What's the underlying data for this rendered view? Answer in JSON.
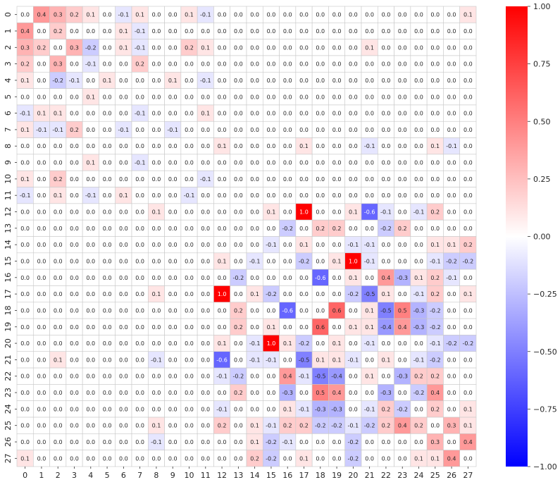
{
  "chart_data": {
    "type": "heatmap",
    "title": "",
    "xlabel": "",
    "ylabel": "",
    "x_labels": [
      "0",
      "1",
      "2",
      "3",
      "4",
      "5",
      "6",
      "7",
      "8",
      "9",
      "10",
      "11",
      "12",
      "13",
      "14",
      "15",
      "16",
      "17",
      "18",
      "19",
      "20",
      "21",
      "22",
      "23",
      "24",
      "25",
      "26",
      "27"
    ],
    "y_labels": [
      "0",
      "1",
      "2",
      "3",
      "4",
      "5",
      "6",
      "7",
      "8",
      "9",
      "10",
      "11",
      "12",
      "13",
      "14",
      "15",
      "16",
      "17",
      "18",
      "19",
      "20",
      "21",
      "22",
      "23",
      "24",
      "25",
      "26",
      "27"
    ],
    "value_range": [
      -1.0,
      1.0
    ],
    "colormap": "bwr",
    "colormap_colors": {
      "min": "#0000ff",
      "mid": "#ffffff",
      "max": "#ff0000"
    },
    "colorbar_ticks": [
      1.0,
      0.75,
      0.5,
      0.25,
      0.0,
      -0.25,
      -0.5,
      -0.75,
      -1.0
    ],
    "colorbar_tick_labels": [
      "1.00",
      "0.75",
      "0.50",
      "0.25",
      "0.00",
      "−0.25",
      "−0.50",
      "−0.75",
      "−1.00"
    ],
    "grid": true,
    "annotations": true,
    "annotation_format": "one-decimal",
    "values": [
      [
        0.0,
        0.4,
        0.3,
        0.2,
        0.1,
        0.0,
        -0.1,
        0.1,
        0.0,
        0.0,
        0.1,
        -0.1,
        0.0,
        0.0,
        0.0,
        -0.0,
        0.0,
        0.0,
        -0.0,
        -0.0,
        0.0,
        0.0,
        0.0,
        0.0,
        -0.0,
        0.0,
        0.0,
        0.1
      ],
      [
        0.4,
        0.0,
        0.2,
        0.0,
        0.0,
        0.0,
        0.1,
        -0.1,
        0.0,
        0.0,
        -0.0,
        -0.0,
        -0.0,
        -0.0,
        0.0,
        0.0,
        0.0,
        -0.0,
        0.0,
        0.0,
        -0.0,
        0.0,
        0.0,
        0.0,
        -0.0,
        0.0,
        0.0,
        0.0
      ],
      [
        0.3,
        0.2,
        0.0,
        0.3,
        -0.2,
        0.0,
        0.1,
        -0.1,
        0.0,
        0.0,
        0.2,
        0.1,
        0.0,
        0.0,
        0.0,
        0.0,
        0.0,
        0.0,
        -0.0,
        -0.0,
        0.0,
        0.1,
        0.0,
        -0.0,
        -0.0,
        0.0,
        0.0,
        -0.0
      ],
      [
        0.2,
        0.0,
        0.3,
        0.0,
        -0.1,
        0.0,
        0.0,
        0.2,
        0.0,
        0.0,
        0.0,
        -0.0,
        0.0,
        0.0,
        -0.0,
        -0.0,
        -0.0,
        -0.0,
        -0.0,
        -0.0,
        -0.0,
        -0.0,
        -0.0,
        -0.0,
        -0.0,
        -0.0,
        -0.0,
        -0.0
      ],
      [
        0.1,
        0.0,
        -0.2,
        -0.1,
        0.0,
        0.1,
        0.0,
        0.0,
        -0.0,
        0.1,
        0.0,
        -0.1,
        -0.0,
        0.0,
        -0.0,
        -0.0,
        -0.0,
        -0.0,
        -0.0,
        -0.0,
        -0.0,
        -0.0,
        -0.0,
        -0.0,
        -0.0,
        0.0,
        0.0,
        0.0
      ],
      [
        0.0,
        0.0,
        0.0,
        0.0,
        0.1,
        0.0,
        0.0,
        0.0,
        -0.0,
        -0.0,
        -0.0,
        0.0,
        -0.0,
        -0.0,
        -0.0,
        -0.0,
        -0.0,
        -0.0,
        -0.0,
        -0.0,
        -0.0,
        -0.0,
        -0.0,
        -0.0,
        0.0,
        0.0,
        0.0,
        0.0
      ],
      [
        -0.1,
        0.1,
        0.1,
        0.0,
        0.0,
        0.0,
        0.0,
        -0.1,
        0.0,
        -0.0,
        -0.0,
        0.1,
        -0.0,
        -0.0,
        0.0,
        0.0,
        0.0,
        -0.0,
        0.0,
        0.0,
        0.0,
        -0.0,
        0.0,
        -0.0,
        -0.0,
        -0.0,
        -0.0,
        -0.0
      ],
      [
        0.1,
        -0.1,
        -0.1,
        0.2,
        0.0,
        0.0,
        -0.1,
        0.0,
        -0.0,
        -0.1,
        -0.0,
        -0.0,
        -0.0,
        0.0,
        0.0,
        0.0,
        0.0,
        -0.0,
        -0.0,
        -0.0,
        0.0,
        -0.0,
        0.0,
        -0.0,
        0.0,
        -0.0,
        0.0,
        0.0
      ],
      [
        0.0,
        0.0,
        0.0,
        0.0,
        -0.0,
        -0.0,
        0.0,
        -0.0,
        0.0,
        -0.0,
        -0.0,
        0.0,
        0.1,
        0.0,
        -0.0,
        0.0,
        0.0,
        0.1,
        -0.0,
        -0.0,
        0.0,
        -0.1,
        -0.0,
        0.0,
        -0.0,
        0.1,
        -0.1,
        0.0
      ],
      [
        0.0,
        0.0,
        0.0,
        0.0,
        0.1,
        -0.0,
        0.0,
        -0.1,
        -0.0,
        0.0,
        -0.0,
        -0.0,
        0.0,
        -0.0,
        -0.0,
        0.0,
        0.0,
        -0.0,
        -0.0,
        -0.0,
        -0.0,
        -0.0,
        -0.0,
        -0.0,
        0.0,
        -0.0,
        -0.0,
        -0.0
      ],
      [
        0.1,
        -0.0,
        0.2,
        0.0,
        0.0,
        0.0,
        0.0,
        0.0,
        -0.0,
        -0.0,
        0.0,
        -0.1,
        -0.0,
        -0.0,
        0.0,
        -0.0,
        0.0,
        -0.0,
        -0.0,
        -0.0,
        0.0,
        -0.0,
        0.0,
        -0.0,
        -0.0,
        0.0,
        -0.0,
        0.0
      ],
      [
        -0.1,
        -0.0,
        0.1,
        -0.0,
        -0.1,
        0.0,
        0.1,
        -0.0,
        0.0,
        -0.0,
        -0.1,
        0.0,
        -0.0,
        -0.0,
        -0.0,
        0.0,
        -0.0,
        0.0,
        0.0,
        -0.0,
        -0.0,
        0.0,
        0.0,
        0.0,
        -0.0,
        0.0,
        -0.0,
        -0.0
      ],
      [
        0.0,
        -0.0,
        0.0,
        0.0,
        -0.0,
        -0.0,
        -0.0,
        -0.0,
        0.1,
        0.0,
        -0.0,
        -0.0,
        0.0,
        -0.0,
        0.0,
        0.1,
        -0.0,
        1.0,
        0.0,
        -0.0,
        0.1,
        -0.6,
        -0.1,
        0.0,
        -0.1,
        0.2,
        -0.0,
        0.0
      ],
      [
        0.0,
        -0.0,
        0.0,
        0.0,
        -0.0,
        -0.0,
        -0.0,
        0.0,
        0.0,
        -0.0,
        -0.0,
        -0.0,
        -0.0,
        0.0,
        -0.0,
        -0.0,
        -0.2,
        -0.0,
        0.2,
        0.2,
        -0.0,
        0.0,
        -0.2,
        0.2,
        -0.0,
        0.0,
        0.0,
        0.0
      ],
      [
        0.0,
        0.0,
        0.0,
        -0.0,
        -0.0,
        -0.0,
        -0.0,
        0.0,
        -0.0,
        -0.0,
        -0.0,
        -0.0,
        0.0,
        -0.0,
        0.0,
        -0.1,
        0.0,
        0.1,
        -0.0,
        -0.0,
        -0.1,
        -0.1,
        0.0,
        0.0,
        0.0,
        0.1,
        0.1,
        0.2
      ],
      [
        -0.0,
        -0.0,
        -0.0,
        -0.0,
        -0.0,
        -0.0,
        -0.0,
        0.0,
        0.0,
        0.0,
        -0.0,
        -0.0,
        0.1,
        -0.0,
        -0.1,
        0.0,
        0.0,
        -0.2,
        0.0,
        0.1,
        1.0,
        -0.1,
        -0.0,
        0.0,
        -0.0,
        -0.1,
        -0.2,
        -0.2
      ],
      [
        0.0,
        0.0,
        0.0,
        -0.0,
        0.0,
        -0.0,
        0.0,
        0.0,
        0.0,
        0.0,
        -0.0,
        -0.0,
        -0.0,
        -0.2,
        0.0,
        0.0,
        0.0,
        -0.0,
        -0.6,
        0.0,
        0.1,
        -0.0,
        0.4,
        -0.3,
        0.1,
        0.2,
        -0.1,
        -0.0
      ],
      [
        0.0,
        -0.0,
        -0.0,
        0.0,
        -0.0,
        -0.0,
        -0.0,
        -0.0,
        0.1,
        0.0,
        -0.0,
        0.0,
        1.0,
        -0.0,
        0.1,
        -0.2,
        -0.0,
        0.0,
        0.0,
        -0.0,
        -0.2,
        -0.5,
        0.1,
        0.0,
        -0.1,
        0.2,
        0.0,
        0.1
      ],
      [
        -0.0,
        0.0,
        -0.0,
        -0.0,
        -0.0,
        -0.0,
        -0.0,
        -0.0,
        -0.0,
        -0.0,
        -0.0,
        0.0,
        0.0,
        0.2,
        -0.0,
        0.0,
        -0.6,
        0.0,
        0.0,
        0.6,
        0.0,
        0.1,
        -0.5,
        0.5,
        -0.3,
        -0.2,
        0.0,
        -0.0
      ],
      [
        -0.0,
        -0.0,
        -0.0,
        -0.0,
        -0.0,
        0.0,
        -0.0,
        0.0,
        -0.0,
        -0.0,
        -0.0,
        -0.0,
        -0.0,
        0.2,
        -0.0,
        0.1,
        0.0,
        -0.0,
        0.6,
        0.0,
        0.1,
        0.1,
        -0.4,
        0.4,
        -0.3,
        -0.2,
        -0.0,
        -0.0
      ],
      [
        0.0,
        -0.0,
        0.0,
        -0.0,
        -0.0,
        -0.0,
        0.0,
        0.0,
        0.0,
        -0.0,
        0.0,
        -0.0,
        0.1,
        -0.0,
        -0.1,
        1.0,
        0.1,
        -0.2,
        0.0,
        0.1,
        0.0,
        -0.1,
        -0.0,
        0.0,
        -0.0,
        -0.1,
        -0.2,
        -0.2
      ],
      [
        0.0,
        0.0,
        0.1,
        -0.0,
        0.0,
        -0.0,
        -0.0,
        -0.0,
        -0.1,
        -0.0,
        -0.0,
        0.0,
        -0.6,
        0.0,
        -0.1,
        -0.1,
        -0.0,
        -0.5,
        0.1,
        0.1,
        -0.1,
        0.0,
        0.1,
        -0.0,
        -0.1,
        -0.2,
        0.0,
        0.0
      ],
      [
        0.0,
        0.0,
        0.0,
        -0.0,
        -0.0,
        0.0,
        0.0,
        0.0,
        -0.0,
        0.0,
        0.0,
        0.0,
        -0.1,
        -0.2,
        0.0,
        -0.0,
        0.4,
        -0.1,
        -0.5,
        -0.4,
        -0.0,
        0.1,
        0.0,
        -0.3,
        0.2,
        0.2,
        0.0,
        0.0
      ],
      [
        0.0,
        0.0,
        -0.0,
        -0.0,
        -0.0,
        -0.0,
        -0.0,
        -0.0,
        0.0,
        -0.0,
        -0.0,
        -0.0,
        0.0,
        0.2,
        0.0,
        0.0,
        -0.3,
        0.0,
        0.5,
        0.4,
        0.0,
        -0.0,
        -0.3,
        0.0,
        -0.2,
        0.4,
        -0.0,
        -0.0
      ],
      [
        -0.0,
        -0.0,
        -0.0,
        -0.0,
        -0.0,
        0.0,
        -0.0,
        0.0,
        -0.0,
        0.0,
        -0.0,
        -0.0,
        -0.1,
        -0.0,
        0.0,
        -0.0,
        0.1,
        -0.1,
        -0.3,
        -0.3,
        -0.0,
        -0.1,
        0.2,
        -0.2,
        0.0,
        0.2,
        0.0,
        0.1
      ],
      [
        0.0,
        0.0,
        0.0,
        -0.0,
        0.0,
        0.0,
        -0.0,
        -0.0,
        0.1,
        -0.0,
        0.0,
        0.0,
        0.2,
        0.0,
        0.1,
        -0.1,
        0.2,
        0.2,
        -0.2,
        -0.2,
        -0.1,
        -0.2,
        0.2,
        0.4,
        0.2,
        0.0,
        0.3,
        0.1
      ],
      [
        0.0,
        0.0,
        0.0,
        -0.0,
        -0.0,
        0.0,
        -0.0,
        0.0,
        -0.1,
        -0.0,
        -0.0,
        -0.0,
        -0.0,
        0.0,
        0.1,
        -0.2,
        -0.1,
        0.0,
        0.0,
        -0.0,
        -0.2,
        0.0,
        0.0,
        -0.0,
        0.0,
        0.3,
        0.0,
        0.4
      ],
      [
        0.1,
        0.0,
        -0.0,
        -0.0,
        0.0,
        -0.0,
        -0.0,
        0.0,
        0.0,
        -0.0,
        0.0,
        -0.0,
        0.0,
        0.0,
        0.2,
        -0.2,
        -0.0,
        0.1,
        -0.0,
        -0.0,
        -0.2,
        0.0,
        0.0,
        -0.0,
        0.1,
        0.1,
        0.4,
        0.0
      ]
    ]
  }
}
